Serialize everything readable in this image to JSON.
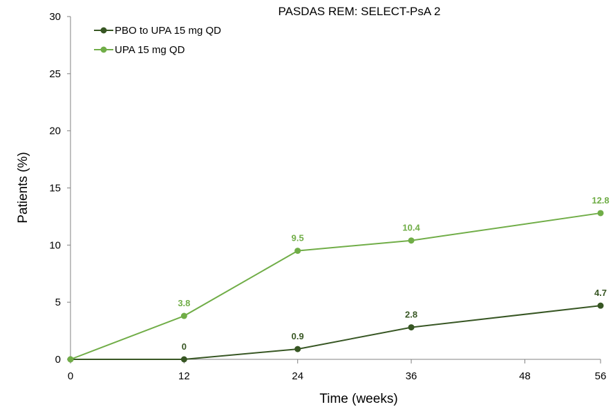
{
  "chart_data": {
    "type": "line",
    "title": "PASDAS REM: SELECT-PsA 2",
    "xlabel": "Time (weeks)",
    "ylabel": "Patients (%)",
    "xlim": [
      0,
      56
    ],
    "ylim": [
      0,
      30
    ],
    "xticks": [
      0,
      12,
      24,
      36,
      48,
      56
    ],
    "yticks": [
      0,
      5,
      10,
      15,
      20,
      25,
      30
    ],
    "grid": false,
    "legend_position": "top-left",
    "series": [
      {
        "name": "PBO to UPA 15 mg QD",
        "color": "#375623",
        "x": [
          0,
          12,
          24,
          36,
          56
        ],
        "y": [
          0,
          0,
          0.9,
          2.8,
          4.7
        ],
        "data_labels": [
          "",
          "0",
          "0.9",
          "2.8",
          "4.7"
        ]
      },
      {
        "name": "UPA 15 mg QD",
        "color": "#70AD47",
        "x": [
          0,
          12,
          24,
          36,
          56
        ],
        "y": [
          0,
          3.8,
          9.5,
          10.4,
          12.8
        ],
        "data_labels": [
          "",
          "3.8",
          "9.5",
          "10.4",
          "12.8"
        ]
      }
    ]
  }
}
